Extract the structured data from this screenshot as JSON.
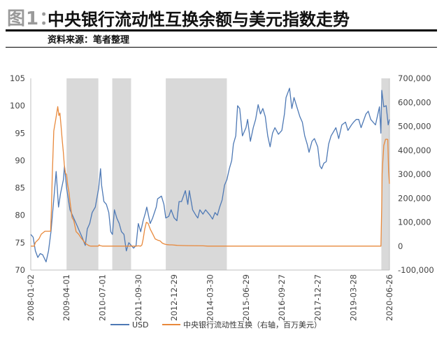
{
  "header": {
    "figure_label": "图1：",
    "title": "中央银行流动性互换余额与美元指数走势",
    "source": "资料来源：笔者整理"
  },
  "chart_data": {
    "type": "line",
    "shading_color": "#d9d9d9",
    "x_tick_labels": [
      "2008-01-02",
      "2009-04-01",
      "2010-07-01",
      "2011-09-30",
      "2012-12-29",
      "2014-03-30",
      "2015-06-29",
      "2016-09-27",
      "2017-12-27",
      "2019-03-28",
      "2020-06-26"
    ],
    "x_range": [
      "2008-01-02",
      "2020-06-26"
    ],
    "y_left": {
      "ticks": [
        70,
        75,
        80,
        85,
        90,
        95,
        100,
        105
      ],
      "range": [
        70,
        105
      ]
    },
    "y_right": {
      "ticks": [
        "-100,000",
        "0",
        "100,000",
        "200,000",
        "300,000",
        "400,000",
        "500,000",
        "600,000",
        "700,000"
      ],
      "range": [
        -100000,
        700000
      ]
    },
    "shaded_periods": [
      [
        "2009-04-01",
        "2010-05-10"
      ],
      [
        "2010-11-03",
        "2011-06-30"
      ],
      [
        "2012-09-13",
        "2014-10-29"
      ],
      [
        "2020-03-15",
        "2020-06-26"
      ]
    ],
    "series": [
      {
        "name": "USD",
        "axis": "left",
        "color": "#4e79b5",
        "points": [
          [
            "2008-01-02",
            76.5
          ],
          [
            "2008-02-01",
            76.0
          ],
          [
            "2008-03-01",
            73.5
          ],
          [
            "2008-04-01",
            72.3
          ],
          [
            "2008-05-01",
            73.0
          ],
          [
            "2008-06-01",
            72.8
          ],
          [
            "2008-07-15",
            71.5
          ],
          [
            "2008-08-15",
            73.5
          ],
          [
            "2008-09-15",
            77.0
          ],
          [
            "2008-10-15",
            82.0
          ],
          [
            "2008-11-20",
            88.0
          ],
          [
            "2008-12-20",
            81.5
          ],
          [
            "2009-01-15",
            84.0
          ],
          [
            "2009-02-20",
            86.5
          ],
          [
            "2009-03-05",
            89.0
          ],
          [
            "2009-04-01",
            85.0
          ],
          [
            "2009-05-15",
            81.0
          ],
          [
            "2009-06-15",
            80.0
          ],
          [
            "2009-08-01",
            78.5
          ],
          [
            "2009-09-15",
            77.0
          ],
          [
            "2009-10-15",
            76.0
          ],
          [
            "2009-11-25",
            74.5
          ],
          [
            "2009-12-20",
            77.5
          ],
          [
            "2010-01-20",
            78.5
          ],
          [
            "2010-02-20",
            80.5
          ],
          [
            "2010-04-01",
            81.5
          ],
          [
            "2010-05-15",
            85.0
          ],
          [
            "2010-06-07",
            88.5
          ],
          [
            "2010-06-20",
            85.5
          ],
          [
            "2010-07-20",
            82.5
          ],
          [
            "2010-08-20",
            82.0
          ],
          [
            "2010-09-20",
            80.5
          ],
          [
            "2010-10-15",
            77.0
          ],
          [
            "2010-11-05",
            76.5
          ],
          [
            "2010-11-30",
            81.0
          ],
          [
            "2010-12-30",
            79.5
          ],
          [
            "2011-01-30",
            78.5
          ],
          [
            "2011-02-28",
            77.0
          ],
          [
            "2011-04-01",
            76.5
          ],
          [
            "2011-05-01",
            73.5
          ],
          [
            "2011-06-01",
            75.0
          ],
          [
            "2011-07-01",
            74.5
          ],
          [
            "2011-08-01",
            74.0
          ],
          [
            "2011-09-01",
            74.5
          ],
          [
            "2011-09-30",
            78.5
          ],
          [
            "2011-10-30",
            77.0
          ],
          [
            "2011-11-30",
            79.0
          ],
          [
            "2011-12-30",
            80.5
          ],
          [
            "2012-01-15",
            81.5
          ],
          [
            "2012-02-28",
            78.5
          ],
          [
            "2012-03-30",
            79.5
          ],
          [
            "2012-05-15",
            81.5
          ],
          [
            "2012-06-01",
            83.0
          ],
          [
            "2012-07-20",
            83.5
          ],
          [
            "2012-08-20",
            82.0
          ],
          [
            "2012-09-13",
            79.5
          ],
          [
            "2012-10-20",
            79.8
          ],
          [
            "2012-11-20",
            81.0
          ],
          [
            "2012-12-29",
            79.5
          ],
          [
            "2013-02-01",
            79.0
          ],
          [
            "2013-03-01",
            82.5
          ],
          [
            "2013-04-01",
            82.5
          ],
          [
            "2013-05-20",
            84.5
          ],
          [
            "2013-06-20",
            82.0
          ],
          [
            "2013-07-10",
            84.5
          ],
          [
            "2013-08-20",
            81.0
          ],
          [
            "2013-09-30",
            80.0
          ],
          [
            "2013-10-25",
            79.5
          ],
          [
            "2013-11-20",
            81.0
          ],
          [
            "2013-12-30",
            80.2
          ],
          [
            "2014-02-01",
            81.0
          ],
          [
            "2014-03-30",
            80.0
          ],
          [
            "2014-05-01",
            79.3
          ],
          [
            "2014-06-01",
            80.5
          ],
          [
            "2014-07-01",
            80.0
          ],
          [
            "2014-07-30",
            81.5
          ],
          [
            "2014-08-30",
            82.8
          ],
          [
            "2014-09-30",
            85.5
          ],
          [
            "2014-10-30",
            86.5
          ],
          [
            "2014-11-30",
            88.5
          ],
          [
            "2014-12-30",
            90.0
          ],
          [
            "2015-01-20",
            93.0
          ],
          [
            "2015-02-20",
            94.5
          ],
          [
            "2015-03-15",
            100.0
          ],
          [
            "2015-04-10",
            99.5
          ],
          [
            "2015-05-15",
            94.5
          ],
          [
            "2015-06-29",
            96.0
          ],
          [
            "2015-07-20",
            97.5
          ],
          [
            "2015-08-24",
            93.5
          ],
          [
            "2015-09-30",
            96.0
          ],
          [
            "2015-10-30",
            97.5
          ],
          [
            "2015-12-01",
            100.2
          ],
          [
            "2015-12-30",
            98.5
          ],
          [
            "2016-01-30",
            99.5
          ],
          [
            "2016-03-01",
            98.0
          ],
          [
            "2016-04-01",
            94.5
          ],
          [
            "2016-05-01",
            92.5
          ],
          [
            "2016-06-01",
            95.0
          ],
          [
            "2016-07-01",
            96.0
          ],
          [
            "2016-08-15",
            94.8
          ],
          [
            "2016-09-27",
            95.5
          ],
          [
            "2016-10-30",
            98.5
          ],
          [
            "2016-11-20",
            101.5
          ],
          [
            "2017-01-03",
            103.2
          ],
          [
            "2017-02-01",
            99.5
          ],
          [
            "2017-03-01",
            101.5
          ],
          [
            "2017-04-01",
            100.0
          ],
          [
            "2017-05-15",
            98.0
          ],
          [
            "2017-06-15",
            97.0
          ],
          [
            "2017-07-15",
            94.5
          ],
          [
            "2017-08-15",
            93.0
          ],
          [
            "2017-09-08",
            91.5
          ],
          [
            "2017-10-15",
            93.5
          ],
          [
            "2017-11-15",
            94.0
          ],
          [
            "2017-12-27",
            92.5
          ],
          [
            "2018-01-25",
            89.0
          ],
          [
            "2018-02-15",
            88.5
          ],
          [
            "2018-03-15",
            89.5
          ],
          [
            "2018-04-15",
            89.8
          ],
          [
            "2018-05-15",
            93.0
          ],
          [
            "2018-06-15",
            94.5
          ],
          [
            "2018-08-15",
            96.0
          ],
          [
            "2018-09-20",
            94.0
          ],
          [
            "2018-10-30",
            96.5
          ],
          [
            "2018-12-15",
            97.0
          ],
          [
            "2019-01-15",
            95.5
          ],
          [
            "2019-03-01",
            96.5
          ],
          [
            "2019-03-28",
            97.0
          ],
          [
            "2019-05-01",
            97.5
          ],
          [
            "2019-06-01",
            97.5
          ],
          [
            "2019-07-01",
            96.0
          ],
          [
            "2019-09-01",
            98.5
          ],
          [
            "2019-10-01",
            99.0
          ],
          [
            "2019-11-01",
            97.5
          ],
          [
            "2019-12-31",
            96.5
          ],
          [
            "2020-02-20",
            99.8
          ],
          [
            "2020-03-09",
            95.0
          ],
          [
            "2020-03-20",
            102.8
          ],
          [
            "2020-04-15",
            99.8
          ],
          [
            "2020-05-15",
            100.0
          ],
          [
            "2020-06-10",
            96.5
          ],
          [
            "2020-06-26",
            97.5
          ]
        ]
      },
      {
        "name": "中央银行流动性互换（右轴，百万美元）",
        "axis": "right",
        "color": "#e8893c",
        "points": [
          [
            "2008-01-02",
            0
          ],
          [
            "2008-02-15",
            0
          ],
          [
            "2008-03-01",
            15000
          ],
          [
            "2008-04-15",
            30000
          ],
          [
            "2008-05-15",
            50000
          ],
          [
            "2008-06-30",
            62000
          ],
          [
            "2008-09-10",
            62000
          ],
          [
            "2008-09-20",
            150000
          ],
          [
            "2008-10-01",
            290000
          ],
          [
            "2008-10-20",
            480000
          ],
          [
            "2008-11-15",
            530000
          ],
          [
            "2008-12-10",
            582000
          ],
          [
            "2008-12-24",
            545000
          ],
          [
            "2009-01-07",
            555000
          ],
          [
            "2009-01-21",
            502000
          ],
          [
            "2009-02-04",
            445000
          ],
          [
            "2009-02-18",
            395000
          ],
          [
            "2009-03-04",
            338000
          ],
          [
            "2009-03-18",
            305000
          ],
          [
            "2009-04-01",
            298000
          ],
          [
            "2009-04-15",
            255000
          ],
          [
            "2009-05-01",
            225000
          ],
          [
            "2009-05-20",
            172000
          ],
          [
            "2009-06-10",
            118000
          ],
          [
            "2009-07-01",
            108000
          ],
          [
            "2009-08-01",
            60000
          ],
          [
            "2009-09-01",
            50000
          ],
          [
            "2009-10-01",
            35000
          ],
          [
            "2009-11-01",
            22000
          ],
          [
            "2009-12-01",
            10000
          ],
          [
            "2010-01-15",
            1000
          ],
          [
            "2010-02-01",
            0
          ],
          [
            "2010-05-10",
            0
          ],
          [
            "2010-05-20",
            5000
          ],
          [
            "2010-06-01",
            2000
          ],
          [
            "2010-06-30",
            0
          ],
          [
            "2011-09-01",
            0
          ],
          [
            "2011-09-30",
            1000
          ],
          [
            "2011-10-30",
            0
          ],
          [
            "2011-11-15",
            5000
          ],
          [
            "2011-12-01",
            30000
          ],
          [
            "2011-12-20",
            70000
          ],
          [
            "2012-01-10",
            99000
          ],
          [
            "2012-02-01",
            95000
          ],
          [
            "2012-03-01",
            70000
          ],
          [
            "2012-04-01",
            50000
          ],
          [
            "2012-05-01",
            30000
          ],
          [
            "2012-06-01",
            25000
          ],
          [
            "2012-07-01",
            22000
          ],
          [
            "2012-08-01",
            12000
          ],
          [
            "2012-09-01",
            8000
          ],
          [
            "2012-10-01",
            6000
          ],
          [
            "2012-11-01",
            5000
          ],
          [
            "2012-12-01",
            5000
          ],
          [
            "2013-02-01",
            3000
          ],
          [
            "2013-06-01",
            2000
          ],
          [
            "2014-01-01",
            1000
          ],
          [
            "2014-03-01",
            0
          ],
          [
            "2020-03-10",
            0
          ],
          [
            "2020-03-19",
            160000
          ],
          [
            "2020-03-25",
            300000
          ],
          [
            "2020-04-01",
            345000
          ],
          [
            "2020-04-15",
            420000
          ],
          [
            "2020-05-06",
            445000
          ],
          [
            "2020-05-20",
            446000
          ],
          [
            "2020-06-05",
            445000
          ],
          [
            "2020-06-15",
            310000
          ],
          [
            "2020-06-26",
            260000
          ]
        ]
      }
    ]
  }
}
